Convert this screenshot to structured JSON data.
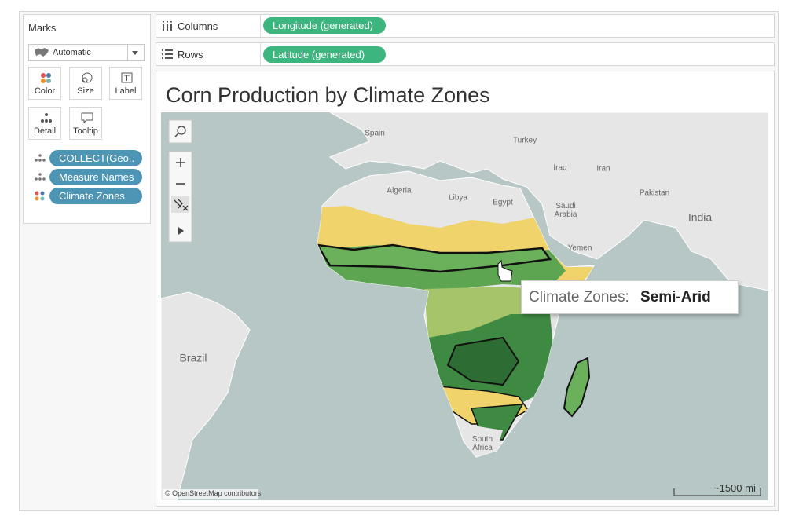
{
  "marks_card": {
    "title": "Marks",
    "mark_type": "Automatic",
    "buttons": [
      "Color",
      "Size",
      "Label",
      "Detail",
      "Tooltip"
    ],
    "pills": [
      "COLLECT(Geo..",
      "Measure Names",
      "Climate Zones"
    ]
  },
  "shelves": [
    {
      "label": "Columns",
      "pill": "Longitude (generated)"
    },
    {
      "label": "Rows",
      "pill": "Latitude (generated)"
    }
  ],
  "view": {
    "title": "Corn Production by Climate Zones",
    "map_labels": [
      "Spain",
      "Turkey",
      "Algeria",
      "Libya",
      "Egypt",
      "Iraq",
      "Iran",
      "Saudi Arabia",
      "Pakistan",
      "India",
      "Yemen",
      "Brazil",
      "South Africa"
    ],
    "attribution": "© OpenStreetMap contributors",
    "scale": "~1500 mi",
    "tooltip": {
      "field": "Climate Zones:",
      "value": "Semi-Arid"
    }
  }
}
